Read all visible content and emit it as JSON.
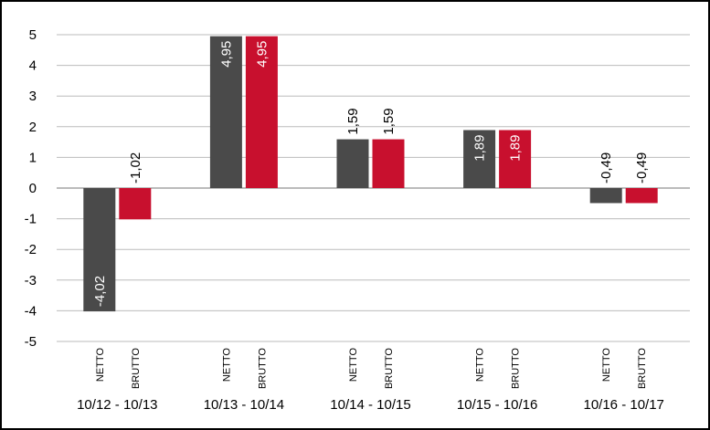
{
  "chart_data": {
    "type": "bar",
    "categories": [
      "10/12 - 10/13",
      "10/13 - 10/14",
      "10/14 - 10/15",
      "10/15 - 10/16",
      "10/16 - 10/17"
    ],
    "series": [
      {
        "name": "NETTO",
        "color": "#4a4a4a",
        "values": [
          -4.02,
          4.95,
          1.59,
          1.89,
          -0.49
        ],
        "value_labels": [
          "-4,02",
          "4,95",
          "1,59",
          "1,89",
          "-0,49"
        ]
      },
      {
        "name": "BRUTTO",
        "color": "#c8102e",
        "values": [
          -1.02,
          4.95,
          1.59,
          1.89,
          -0.49
        ],
        "value_labels": [
          "-1,02",
          "4,95",
          "1,59",
          "1,89",
          "-0,49"
        ]
      }
    ],
    "ylim": [
      -5,
      5
    ],
    "yticks": [
      -5,
      -4,
      -3,
      -2,
      -1,
      0,
      1,
      2,
      3,
      4,
      5
    ],
    "grid": true
  }
}
